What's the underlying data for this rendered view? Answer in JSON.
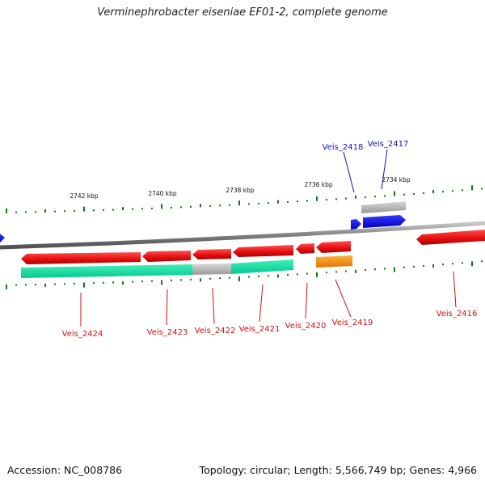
{
  "title": "Verminephrobacter eiseniae EF01-2, complete genome",
  "footer": {
    "accession": "Accession: NC_008786",
    "summary": "Topology: circular; Length: 5,566,749 bp; Genes: 4,966"
  },
  "scale_labels": [
    "2742 kbp",
    "2740 kbp",
    "2738 kbp",
    "2736 kbp",
    "2734 kbp"
  ],
  "gene_labels": {
    "top": [
      "Veis_2418",
      "Veis_2417"
    ],
    "bottom": [
      "Veis_2424",
      "Veis_2423",
      "Veis_2422",
      "Veis_2421",
      "Veis_2420",
      "Veis_2419",
      "Veis_2416"
    ]
  },
  "colors": {
    "backbone": "#8a8a8a",
    "tick": "#0b7a0b",
    "red_gene": "#e01010",
    "blue_gene": "#0a0aee",
    "grey_feature": "#b8b8b8",
    "green_feature": "#10e0a0",
    "orange_feature": "#ff9a10",
    "top_label": "#1010c0",
    "bottom_label": "#d01010"
  }
}
